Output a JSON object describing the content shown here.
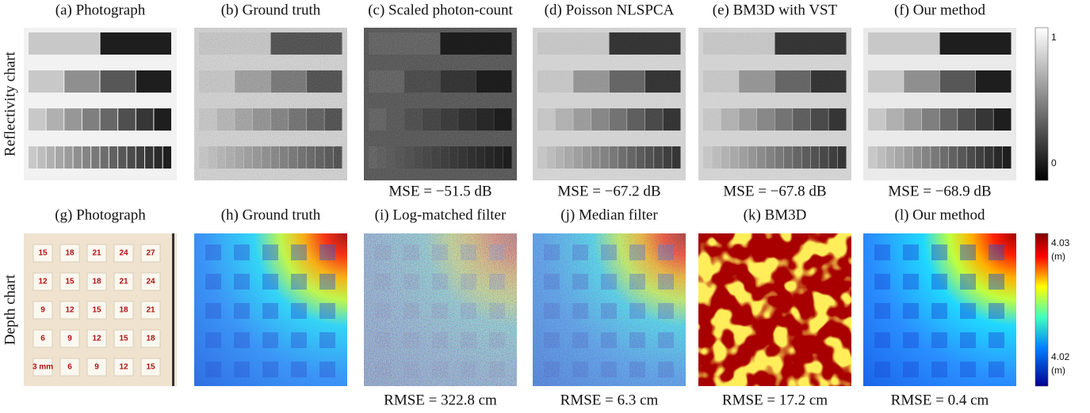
{
  "rows": [
    {
      "label": "Reflectivity chart",
      "panels": [
        {
          "caption": "(a) Photograph"
        },
        {
          "caption": "(b) Ground truth"
        },
        {
          "caption": "(c) Scaled photon-count",
          "metric": "MSE = −51.5 dB"
        },
        {
          "caption": "(d) Poisson NLSPCA",
          "metric": "MSE = −67.2 dB"
        },
        {
          "caption": "(e) BM3D with VST",
          "metric": "MSE = −67.8 dB"
        },
        {
          "caption": "(f) Our method",
          "metric": "MSE = −68.9 dB"
        }
      ],
      "colorbar": {
        "max": "1",
        "min": "0"
      }
    },
    {
      "label": "Depth chart",
      "panels": [
        {
          "caption": "(g) Photograph",
          "tiles": [
            [
              "15",
              "18",
              "21",
              "24",
              "27"
            ],
            [
              "12",
              "15",
              "18",
              "21",
              "24"
            ],
            [
              "9",
              "12",
              "15",
              "18",
              "21"
            ],
            [
              "6",
              "9",
              "12",
              "15",
              "18"
            ],
            [
              "3 mm",
              "6",
              "9",
              "12",
              "15"
            ]
          ]
        },
        {
          "caption": "(h) Ground truth"
        },
        {
          "caption": "(i) Log-matched filter",
          "metric": "RMSE = 322.8 cm"
        },
        {
          "caption": "(j) Median filter",
          "metric": "RMSE = 6.3 cm"
        },
        {
          "caption": "(k) BM3D",
          "metric": "RMSE = 17.2 cm"
        },
        {
          "caption": "(l) Our method",
          "metric": "RMSE = 0.4 cm"
        }
      ],
      "colorbar": {
        "max": "4.03",
        "max_unit": "(m)",
        "min": "4.02",
        "min_unit": "(m)"
      }
    }
  ]
}
